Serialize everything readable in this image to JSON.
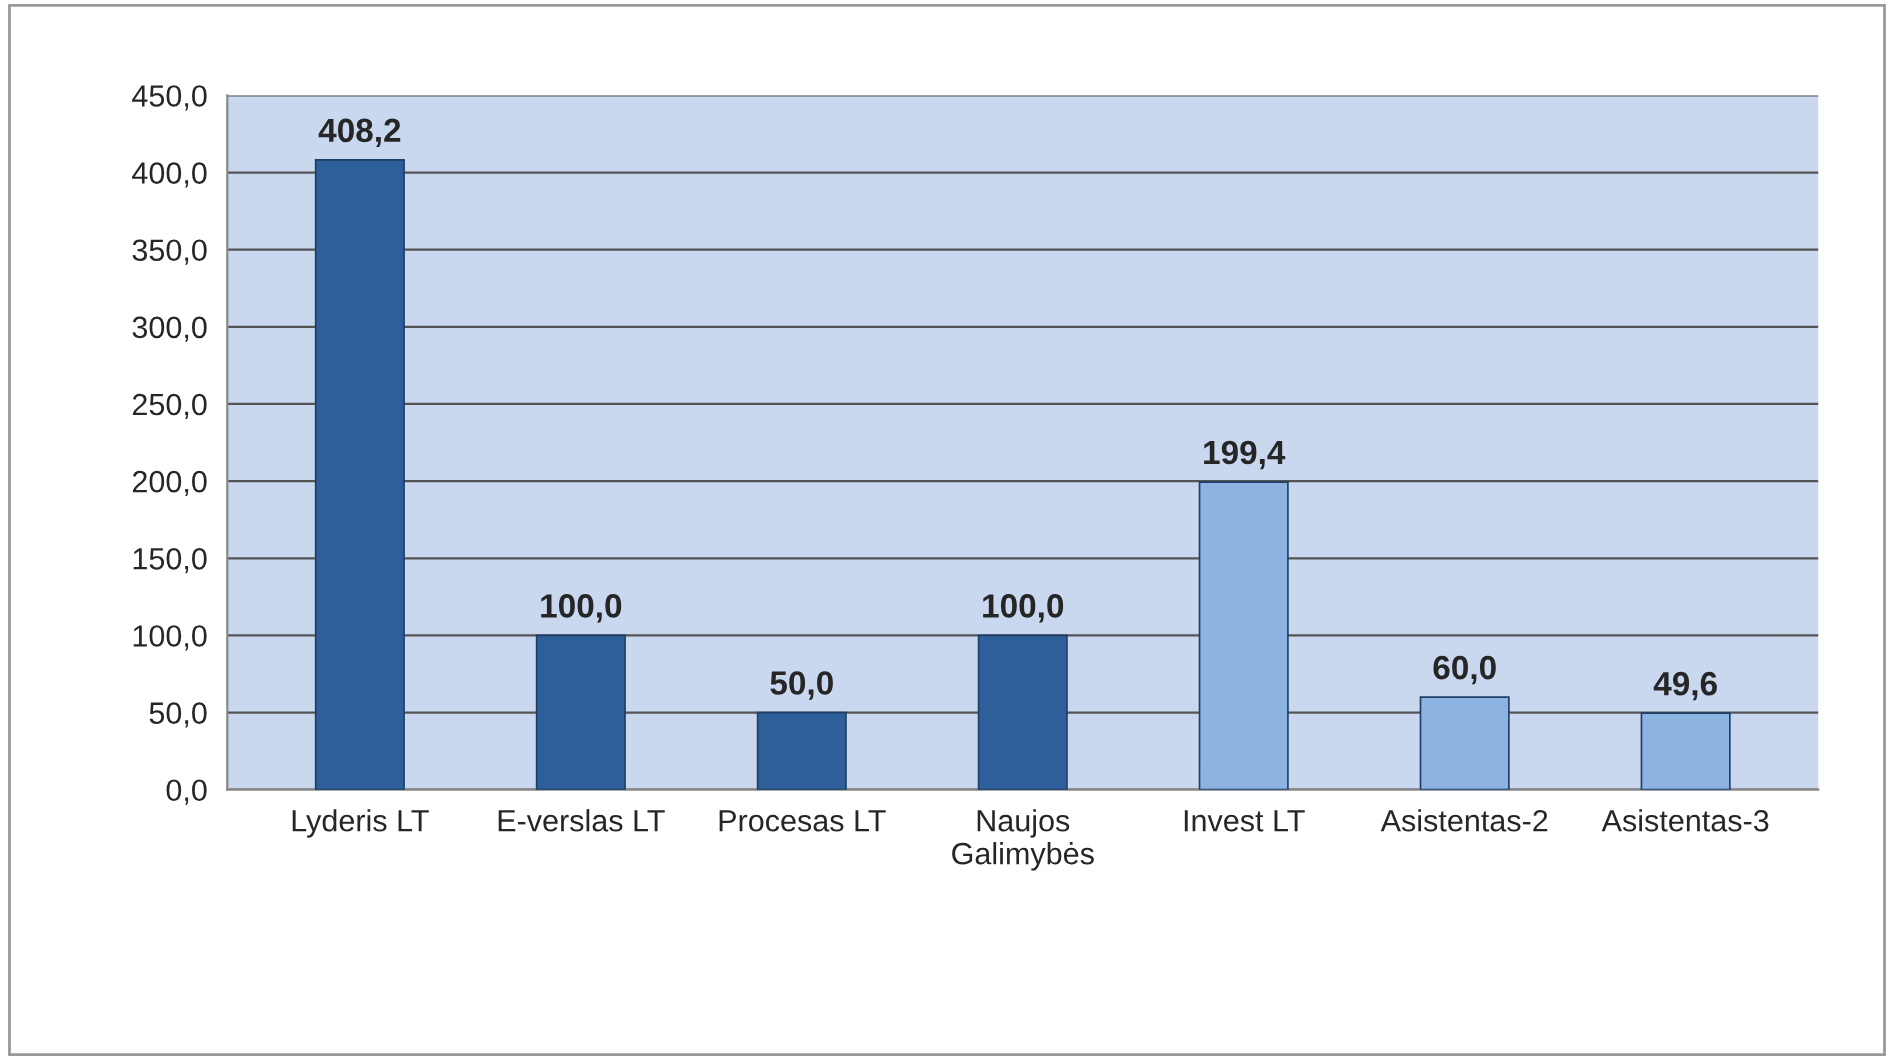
{
  "chart_data": {
    "type": "bar",
    "categories": [
      "Lyderis LT",
      "E-verslas LT",
      "Procesas LT",
      "Naujos\nGalimybės",
      "Invest LT",
      "Asistentas-2",
      "Asistentas-3"
    ],
    "values": [
      408.2,
      100.0,
      50.0,
      100.0,
      199.4,
      60.0,
      49.6
    ],
    "colors": [
      "#2e5f9a",
      "#2e5f9a",
      "#2e5f9a",
      "#2e5f9a",
      "#8db3e2",
      "#8db3e2",
      "#8db3e2"
    ],
    "value_labels": [
      "408,2",
      "100,0",
      "50,0",
      "100,0",
      "199,4",
      "60,0",
      "49,6"
    ],
    "ylim": [
      0,
      450
    ],
    "yticks": [
      {
        "value": 0,
        "label": "0,0"
      },
      {
        "value": 50,
        "label": "50,0"
      },
      {
        "value": 100,
        "label": "100,0"
      },
      {
        "value": 150,
        "label": "150,0"
      },
      {
        "value": 200,
        "label": "200,0"
      },
      {
        "value": 250,
        "label": "250,0"
      },
      {
        "value": 300,
        "label": "300,0"
      },
      {
        "value": 350,
        "label": "350,0"
      },
      {
        "value": 400,
        "label": "400,0"
      },
      {
        "value": 450,
        "label": "450,0"
      }
    ],
    "grid": "y",
    "legend": false
  }
}
